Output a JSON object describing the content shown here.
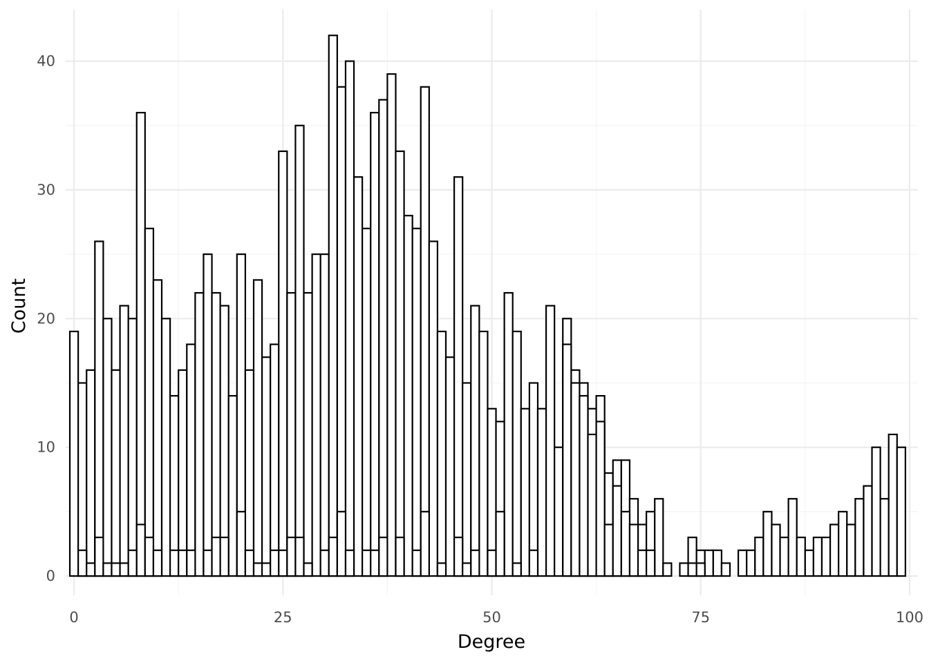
{
  "chart_data": {
    "type": "bar",
    "subtype": "histogram",
    "title": "",
    "xlabel": "Degree",
    "ylabel": "Count",
    "xlim": [
      -1,
      101
    ],
    "ylim": [
      -1.5,
      44
    ],
    "x_ticks": [
      0,
      25,
      50,
      75,
      100
    ],
    "y_ticks": [
      0,
      10,
      20,
      30,
      40
    ],
    "grid": true,
    "bar_fill": "#ffffff",
    "bar_stroke": "#000000",
    "bin_width": 1,
    "bins_start": 0,
    "series": [
      {
        "values": [
          19,
          15,
          16,
          26,
          20,
          16,
          21,
          20,
          36,
          27,
          23,
          20,
          14,
          16,
          18,
          22,
          25,
          22,
          21,
          14,
          25,
          16,
          23,
          17,
          18,
          33,
          22,
          35,
          22,
          25,
          25,
          42,
          38,
          40,
          31,
          27,
          36,
          37,
          39,
          33,
          28,
          27,
          38,
          26,
          19,
          17,
          31,
          15,
          21,
          19,
          13,
          12,
          22,
          19,
          13,
          15,
          13,
          21,
          10,
          20,
          16,
          15,
          13,
          14,
          8,
          9,
          9,
          6,
          4,
          5,
          6,
          1,
          0,
          1,
          3,
          2,
          2,
          2,
          1,
          0,
          2,
          2,
          3,
          5,
          4,
          3,
          6,
          3,
          2,
          3,
          3,
          4,
          5,
          4,
          6,
          7,
          10,
          6,
          11,
          10
        ]
      },
      {
        "values": [
          0,
          2,
          1,
          3,
          1,
          1,
          1,
          2,
          4,
          3,
          2,
          0,
          2,
          2,
          2,
          0,
          2,
          3,
          3,
          0,
          5,
          2,
          1,
          1,
          2,
          2,
          3,
          3,
          1,
          0,
          2,
          3,
          5,
          2,
          0,
          2,
          2,
          3,
          0,
          3,
          0,
          2,
          5,
          0,
          1,
          0,
          3,
          1,
          2,
          0,
          2,
          5,
          0,
          1,
          0,
          2,
          0,
          0,
          0,
          18,
          15,
          14,
          11,
          12,
          4,
          7,
          5,
          4,
          2,
          2,
          0,
          0,
          0,
          0,
          1,
          1,
          0,
          0,
          0,
          0,
          0,
          0,
          0,
          0,
          0,
          0,
          0,
          0,
          0,
          0,
          0,
          0,
          0,
          0,
          0,
          0,
          0,
          0,
          0,
          0
        ]
      }
    ]
  }
}
